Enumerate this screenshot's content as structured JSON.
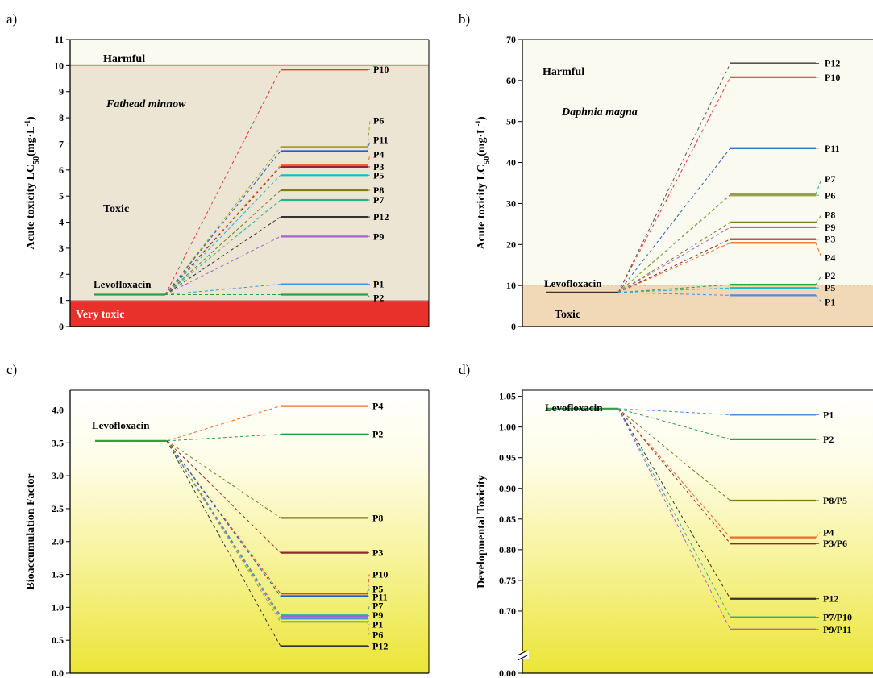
{
  "chart_data": [
    {
      "panel": "a)",
      "type": "line",
      "ylabel": "Acute toxicity LC50(mg·L⁻¹)",
      "ylabel_main": "Acute toxicity LC",
      "ylabel_sub": "50",
      "ylabel_unit": "(mg·L",
      "ylabel_sup": "-1",
      "ylabel_close": ")",
      "ylim": [
        0,
        11
      ],
      "yticks": [
        0,
        1,
        2,
        3,
        4,
        5,
        6,
        7,
        8,
        9,
        10,
        11
      ],
      "organism": "Fathead minnow",
      "zones": [
        {
          "label": "Harmful",
          "from": 10,
          "to": 11,
          "color": "#fafaf0"
        },
        {
          "label": "Toxic",
          "from": 1,
          "to": 10,
          "color": "#ece5d3"
        },
        {
          "label": "Very toxic",
          "from": 0,
          "to": 1,
          "color": "#e8312a"
        }
      ],
      "parent": {
        "name": "Levofloxacin",
        "value": 1.22,
        "color": "#2ea043"
      },
      "products": [
        {
          "name": "P10",
          "value": 9.85,
          "color": "#e5393a",
          "label_y": 9.85
        },
        {
          "name": "P6",
          "value": 6.88,
          "color": "#a3a12a",
          "label_y": 7.9
        },
        {
          "name": "P11",
          "value": 6.72,
          "color": "#1f63b5",
          "label_y": 7.15
        },
        {
          "name": "P4",
          "value": 6.18,
          "color": "#f06a2a",
          "label_y": 6.6
        },
        {
          "name": "P3",
          "value": 6.12,
          "color": "#8b2b2b",
          "label_y": 6.12
        },
        {
          "name": "P5",
          "value": 5.8,
          "color": "#17b8d0",
          "label_y": 5.8
        },
        {
          "name": "P8",
          "value": 5.22,
          "color": "#7e7a1e",
          "label_y": 5.22
        },
        {
          "name": "P7",
          "value": 4.85,
          "color": "#2ab08f",
          "label_y": 4.85
        },
        {
          "name": "P12",
          "value": 4.2,
          "color": "#333333",
          "label_y": 4.2
        },
        {
          "name": "P9",
          "value": 3.45,
          "color": "#a463d0",
          "label_y": 3.45
        },
        {
          "name": "P1",
          "value": 1.62,
          "color": "#4a90d9",
          "label_y": 1.62
        },
        {
          "name": "P2",
          "value": 1.22,
          "color": "#2ea043",
          "label_y": 1.1
        }
      ]
    },
    {
      "panel": "b)",
      "type": "line",
      "ylabel": "Acute toxicity LC50(mg·L⁻¹)",
      "ylabel_main": "Acute toxicity LC",
      "ylabel_sub": "50",
      "ylabel_unit": "(mg·L",
      "ylabel_sup": "-1",
      "ylabel_close": ")",
      "ylim": [
        0,
        70
      ],
      "yticks": [
        0,
        10,
        20,
        30,
        40,
        50,
        60,
        70
      ],
      "organism": "Daphnia magna",
      "zones": [
        {
          "label": "Harmful",
          "from": 10,
          "to": 70,
          "color": "#fafaf0"
        },
        {
          "label": "Toxic",
          "from": 0,
          "to": 10,
          "color": "#f1d9b8"
        }
      ],
      "parent": {
        "name": "Levofloxacin",
        "value": 8.3,
        "color": "#333333"
      },
      "products": [
        {
          "name": "P12",
          "value": 64.2,
          "color": "#555555",
          "label_y": 64.2
        },
        {
          "name": "P10",
          "value": 60.8,
          "color": "#e5393a",
          "label_y": 60.8
        },
        {
          "name": "P11",
          "value": 43.5,
          "color": "#1f63b5",
          "label_y": 43.5
        },
        {
          "name": "P7",
          "value": 32.2,
          "color": "#2ab08f",
          "label_y": 36.0
        },
        {
          "name": "P6",
          "value": 32.0,
          "color": "#a3a12a",
          "label_y": 32.0
        },
        {
          "name": "P8",
          "value": 25.4,
          "color": "#7e7a1e",
          "label_y": 27.2
        },
        {
          "name": "P9",
          "value": 24.2,
          "color": "#a463d0",
          "label_y": 24.2
        },
        {
          "name": "P3",
          "value": 21.3,
          "color": "#8b2b2b",
          "label_y": 21.3
        },
        {
          "name": "P4",
          "value": 20.4,
          "color": "#f06a2a",
          "label_y": 16.8
        },
        {
          "name": "P2",
          "value": 10.2,
          "color": "#2ea043",
          "label_y": 12.4
        },
        {
          "name": "P5",
          "value": 9.4,
          "color": "#17b8d0",
          "label_y": 9.4
        },
        {
          "name": "P1",
          "value": 7.6,
          "color": "#4a90d9",
          "label_y": 6.0
        }
      ]
    },
    {
      "panel": "c)",
      "type": "line",
      "ylabel": "Bioaccumulation Factor",
      "ylim": [
        0,
        4.3
      ],
      "yticks": [
        0.0,
        0.5,
        1.0,
        1.5,
        2.0,
        2.5,
        3.0,
        3.5,
        4.0
      ],
      "tick_format": "0.0",
      "parent": {
        "name": "Levofloxacin",
        "value": 3.53,
        "color": "#2ea043"
      },
      "products": [
        {
          "name": "P4",
          "value": 4.06,
          "color": "#f06a2a",
          "label_y": 4.06
        },
        {
          "name": "P2",
          "value": 3.63,
          "color": "#2ea043",
          "label_y": 3.63
        },
        {
          "name": "P8",
          "value": 2.36,
          "color": "#7e7a1e",
          "label_y": 2.36
        },
        {
          "name": "P3",
          "value": 1.83,
          "color": "#8b2b2b",
          "label_y": 1.83
        },
        {
          "name": "P10",
          "value": 1.21,
          "color": "#e5393a",
          "label_y": 1.5
        },
        {
          "name": "P5",
          "value": 1.17,
          "color": "#17b8d0",
          "label_y": 1.28
        },
        {
          "name": "P11",
          "value": 1.17,
          "color": "#1f63b5",
          "label_y": 1.16
        },
        {
          "name": "P7",
          "value": 0.88,
          "color": "#2ab08f",
          "label_y": 1.02
        },
        {
          "name": "P9",
          "value": 0.86,
          "color": "#a463d0",
          "label_y": 0.88
        },
        {
          "name": "P1",
          "value": 0.83,
          "color": "#4a90d9",
          "label_y": 0.74
        },
        {
          "name": "P6",
          "value": 0.78,
          "color": "#a3a12a",
          "label_y": 0.58
        },
        {
          "name": "P12",
          "value": 0.41,
          "color": "#333333",
          "label_y": 0.41
        }
      ]
    },
    {
      "panel": "d)",
      "type": "line",
      "ylabel": "Developmental Toxicity",
      "ylim": [
        0.65,
        1.06
      ],
      "yticks": [
        0.7,
        0.75,
        0.8,
        0.85,
        0.9,
        0.95,
        1.0,
        1.05
      ],
      "axis_break": true,
      "base_tick": "0.00",
      "tick_format": "0.00",
      "parent": {
        "name": "Levofloxacin",
        "value": 1.03,
        "color": "#2ea043"
      },
      "products": [
        {
          "name": "P1",
          "value": 1.02,
          "color": "#4a90d9",
          "label_y": 1.02
        },
        {
          "name": "P2",
          "value": 0.98,
          "color": "#2ea043",
          "label_y": 0.98
        },
        {
          "name": "P8/P5",
          "value": 0.88,
          "color": "#7e7a1e",
          "label_y": 0.88
        },
        {
          "name": "P4",
          "value": 0.82,
          "color": "#f06a2a",
          "label_y": 0.828
        },
        {
          "name": "P3/P6",
          "value": 0.81,
          "color": "#8b2b2b",
          "label_y": 0.81
        },
        {
          "name": "P12",
          "value": 0.72,
          "color": "#333333",
          "label_y": 0.72
        },
        {
          "name": "P7/P10",
          "value": 0.69,
          "color": "#2ab08f",
          "label_y": 0.69
        },
        {
          "name": "P9/P11",
          "value": 0.67,
          "color": "#a463d0",
          "label_y": 0.67
        }
      ]
    }
  ]
}
